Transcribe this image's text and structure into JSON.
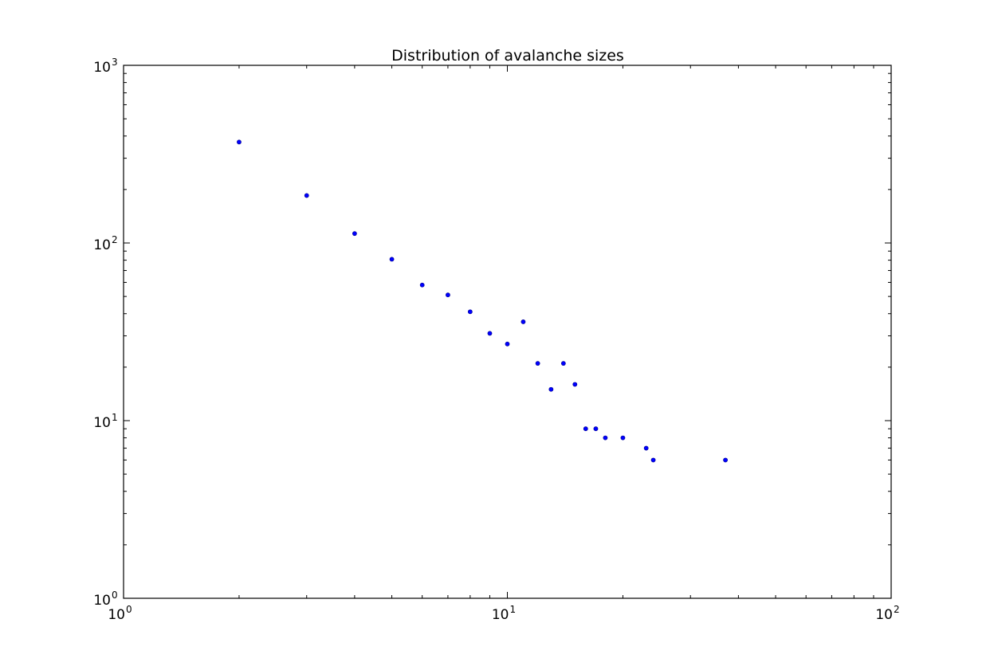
{
  "chart_data": {
    "type": "scatter",
    "title": "Distribution of avalanche sizes",
    "xlabel": "",
    "ylabel": "",
    "xscale": "log",
    "yscale": "log",
    "xlim": [
      1,
      100
    ],
    "ylim": [
      1,
      1000
    ],
    "grid": false,
    "marker_color": "#0000ff",
    "x_ticks": [
      {
        "value": 1,
        "base": "10",
        "exp": "0"
      },
      {
        "value": 10,
        "base": "10",
        "exp": "1"
      },
      {
        "value": 100,
        "base": "10",
        "exp": "2"
      }
    ],
    "y_ticks": [
      {
        "value": 1,
        "base": "10",
        "exp": "0"
      },
      {
        "value": 10,
        "base": "10",
        "exp": "1"
      },
      {
        "value": 100,
        "base": "10",
        "exp": "2"
      },
      {
        "value": 1000,
        "base": "10",
        "exp": "3"
      }
    ],
    "series": [
      {
        "points": [
          {
            "x": 2,
            "y": 370
          },
          {
            "x": 3,
            "y": 185
          },
          {
            "x": 4,
            "y": 113
          },
          {
            "x": 5,
            "y": 81
          },
          {
            "x": 6,
            "y": 58
          },
          {
            "x": 7,
            "y": 51
          },
          {
            "x": 8,
            "y": 41
          },
          {
            "x": 9,
            "y": 31
          },
          {
            "x": 10,
            "y": 27
          },
          {
            "x": 11,
            "y": 36
          },
          {
            "x": 12,
            "y": 21
          },
          {
            "x": 13,
            "y": 15
          },
          {
            "x": 14,
            "y": 21
          },
          {
            "x": 15,
            "y": 16
          },
          {
            "x": 16,
            "y": 9
          },
          {
            "x": 17,
            "y": 9
          },
          {
            "x": 18,
            "y": 8
          },
          {
            "x": 20,
            "y": 8
          },
          {
            "x": 23,
            "y": 7
          },
          {
            "x": 24,
            "y": 6
          },
          {
            "x": 37,
            "y": 6
          }
        ]
      }
    ]
  }
}
